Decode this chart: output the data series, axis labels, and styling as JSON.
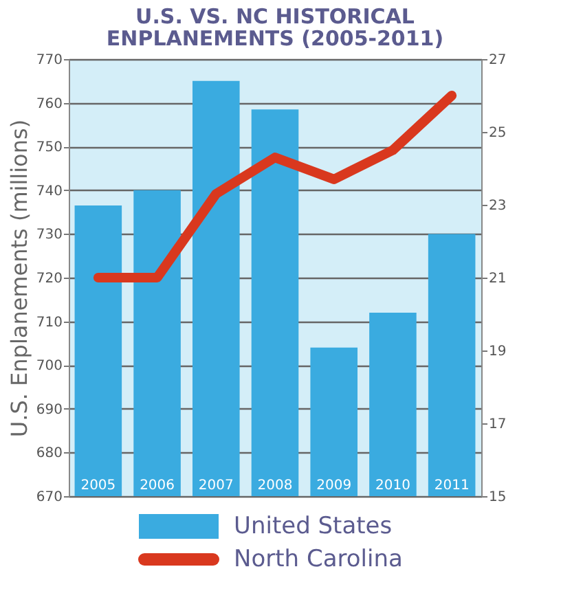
{
  "chart_data": {
    "type": "bar",
    "title": [
      "U.S. VS. NC HISTORICAL",
      "ENPLANEMENTS (2005-2011)"
    ],
    "ylabel": "U.S. Enplanements (millions)",
    "categories": [
      "2005",
      "2006",
      "2007",
      "2008",
      "2009",
      "2010",
      "2011"
    ],
    "series": [
      {
        "name": "United States",
        "color": "#3aabe0",
        "values": [
          736.5,
          740,
          765,
          758.5,
          704,
          712,
          730
        ]
      },
      {
        "name": "North Carolina",
        "type": "line",
        "axis": "y2",
        "color": "#d9381e",
        "values": [
          21,
          21,
          23.3,
          24.3,
          23.7,
          24.5,
          26
        ]
      }
    ],
    "ylim": [
      670,
      770
    ],
    "yticks": [
      670,
      680,
      690,
      700,
      710,
      720,
      730,
      740,
      750,
      760,
      770
    ],
    "y2lim": [
      15,
      27
    ],
    "y2ticks": [
      15,
      17,
      19,
      21,
      23,
      25,
      27
    ],
    "grid": "y",
    "legend": "bottom",
    "tick_labels": "y"
  }
}
